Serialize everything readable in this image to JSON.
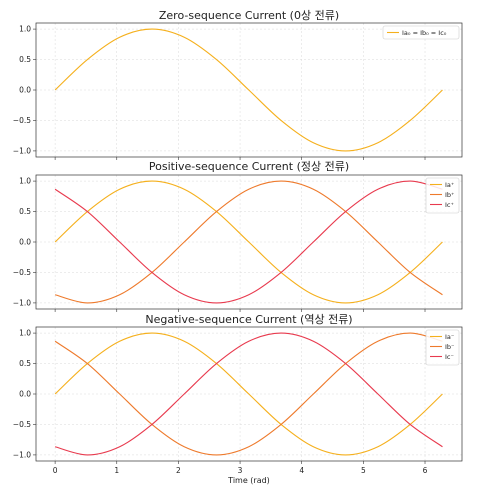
{
  "chart_data": [
    {
      "type": "line",
      "title": "Zero-sequence Current (0상 전류)",
      "xlim": [
        -0.31,
        6.6
      ],
      "ylim": [
        -1.1,
        1.1
      ],
      "yticks": [
        1.0,
        0.5,
        0.0,
        -0.5,
        -1.0
      ],
      "ytick_labels": [
        "1.0",
        "0.5",
        "0.0",
        "−0.5",
        "−1.0"
      ],
      "grid": true,
      "legend_position": "top-right",
      "x": [
        0.0,
        0.5236,
        1.0472,
        1.5708,
        2.0944,
        2.618,
        3.1416,
        3.6652,
        4.1888,
        4.7124,
        5.236,
        5.7596,
        6.2832
      ],
      "series": [
        {
          "name": "Ia₀ = Ib₀ = Ic₀",
          "color": "#f5b01d",
          "values": [
            0.0,
            0.5,
            0.866,
            1.0,
            0.866,
            0.5,
            0.0,
            -0.5,
            -0.866,
            -1.0,
            -0.866,
            -0.5,
            0.0
          ]
        }
      ]
    },
    {
      "type": "line",
      "title": "Positive-sequence Current (정상 전류)",
      "xlim": [
        -0.31,
        6.6
      ],
      "ylim": [
        -1.1,
        1.1
      ],
      "yticks": [
        1.0,
        0.5,
        0.0,
        -0.5,
        -1.0
      ],
      "ytick_labels": [
        "1.0",
        "0.5",
        "0.0",
        "−0.5",
        "−1.0"
      ],
      "grid": true,
      "legend_position": "top-right",
      "x": [
        0.0,
        0.5236,
        1.0472,
        1.5708,
        2.0944,
        2.618,
        3.1416,
        3.6652,
        4.1888,
        4.7124,
        5.236,
        5.7596,
        6.2832
      ],
      "series": [
        {
          "name": "Ia⁺",
          "color": "#f5b01d",
          "values": [
            0.0,
            0.5,
            0.866,
            1.0,
            0.866,
            0.5,
            0.0,
            -0.5,
            -0.866,
            -1.0,
            -0.866,
            -0.5,
            0.0
          ]
        },
        {
          "name": "Ib⁺",
          "color": "#ee7a2c",
          "values": [
            -0.866,
            -1.0,
            -0.866,
            -0.5,
            0.0,
            0.5,
            0.866,
            1.0,
            0.866,
            0.5,
            0.0,
            -0.5,
            -0.866
          ]
        },
        {
          "name": "Ic⁺",
          "color": "#e83a4e",
          "values": [
            0.866,
            0.5,
            0.0,
            -0.5,
            -0.866,
            -1.0,
            -0.866,
            -0.5,
            0.0,
            0.5,
            0.866,
            1.0,
            0.866
          ]
        }
      ]
    },
    {
      "type": "line",
      "title": "Negative-sequence Current (역상 전류)",
      "xlabel": "Time (rad)",
      "xlim": [
        -0.31,
        6.6
      ],
      "ylim": [
        -1.1,
        1.1
      ],
      "xticks": [
        0,
        1,
        2,
        3,
        4,
        5,
        6
      ],
      "yticks": [
        1.0,
        0.5,
        0.0,
        -0.5,
        -1.0
      ],
      "ytick_labels": [
        "1.0",
        "0.5",
        "0.0",
        "−0.5",
        "−1.0"
      ],
      "grid": true,
      "legend_position": "top-right",
      "x": [
        0.0,
        0.5236,
        1.0472,
        1.5708,
        2.0944,
        2.618,
        3.1416,
        3.6652,
        4.1888,
        4.7124,
        5.236,
        5.7596,
        6.2832
      ],
      "series": [
        {
          "name": "Ia⁻",
          "color": "#f5b01d",
          "values": [
            0.0,
            0.5,
            0.866,
            1.0,
            0.866,
            0.5,
            0.0,
            -0.5,
            -0.866,
            -1.0,
            -0.866,
            -0.5,
            0.0
          ]
        },
        {
          "name": "Ib⁻",
          "color": "#ee7a2c",
          "values": [
            0.866,
            0.5,
            0.0,
            -0.5,
            -0.866,
            -1.0,
            -0.866,
            -0.5,
            0.0,
            0.5,
            0.866,
            1.0,
            0.866
          ]
        },
        {
          "name": "Ic⁻",
          "color": "#e83a4e",
          "values": [
            -0.866,
            -1.0,
            -0.866,
            -0.5,
            0.0,
            0.5,
            0.866,
            1.0,
            0.866,
            0.5,
            0.0,
            -0.5,
            -0.866
          ]
        }
      ]
    }
  ]
}
